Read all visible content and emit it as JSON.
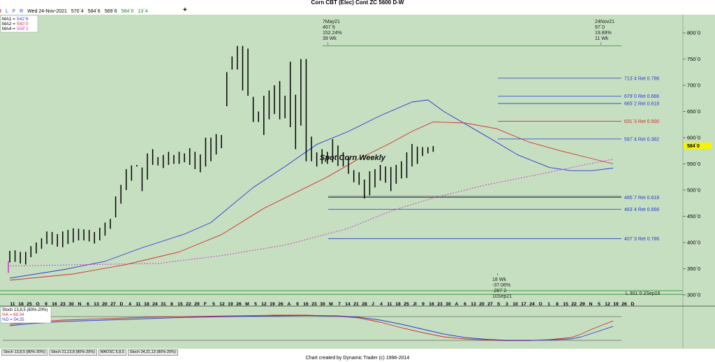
{
  "title": "Corn CBT (Elec) Cont ZC 5600 D-W",
  "toolbar": {
    "letters": [
      "I",
      "L",
      "F",
      "R"
    ],
    "date": "Wed 24-Nov-2021",
    "open": "570`4",
    "high": "584`6",
    "low": "569`6",
    "close": "584`0",
    "change": "13`4",
    "plus": "+"
  },
  "legend": [
    {
      "label": "MA1 =",
      "value": "542`6",
      "color": "#2b3bd6"
    },
    {
      "label": "MA2 =",
      "value": "550`0",
      "color": "#d32f2f"
    },
    {
      "label": "MA4 =",
      "value": "559`2",
      "color": "#cc33cc"
    }
  ],
  "annotations": {
    "chart_label": "Spot Corn Weekly",
    "high_lines": [
      "7May21",
      "467`6",
      "152.24%",
      "39 Wk"
    ],
    "recent_lines": [
      "24Nov21",
      "97`0",
      "19.89%",
      "11 Wk"
    ],
    "low_lines": [
      "18 Wk",
      "-37.06%",
      "-287`2",
      "10Sep21"
    ],
    "low_line_label": "L 301`0 2Sep16",
    "price_badge": "584`0"
  },
  "stoch_legend": {
    "title": "Stoch 13,8,5 (80%-20%)",
    "k": "%K = 69.34",
    "d": "%D = 54.25"
  },
  "tabs": [
    "Stoch 13,8,5 (80%-20%)",
    "Stoch 21,13,8 (80%-20%)",
    "MAOSC 5,8,5",
    "Stoch 34,21,13 (80%-20%)"
  ],
  "footer": "Chart created by Dynamic Trader  (c)  1996-2014",
  "colors": {
    "background": "#c6dfc1",
    "blue": "#2b3bd6",
    "red": "#d32f2f",
    "magenta": "#cc33cc",
    "green_line": "#2f8f2f",
    "badge": "#f5f500"
  },
  "chart_data": {
    "type": "bar",
    "title": "Corn CBT (Elec) Cont ZC 5600 D-W",
    "ylim": [
      290,
      840
    ],
    "y_ticks": [
      {
        "value": 800,
        "label": "800`0"
      },
      {
        "value": 750,
        "label": "750`0"
      },
      {
        "value": 700,
        "label": "700`0"
      },
      {
        "value": 650,
        "label": "650`0"
      },
      {
        "value": 600,
        "label": "600`0"
      },
      {
        "value": 550,
        "label": "550`0"
      },
      {
        "value": 500,
        "label": "500`0"
      },
      {
        "value": 450,
        "label": "450`0"
      },
      {
        "value": 400,
        "label": "400`0"
      },
      {
        "value": 350,
        "label": "350`0"
      },
      {
        "value": 300,
        "label": "300`0"
      }
    ],
    "x_labels": [
      "11",
      "18",
      "25",
      "O",
      "9",
      "16",
      "23",
      "30",
      "N",
      "6",
      "13",
      "20",
      "27",
      "D",
      "4",
      "11",
      "18",
      "24",
      "31",
      "8",
      "15",
      "22",
      "29",
      "F",
      "5",
      "12",
      "19",
      "26",
      "M",
      "5",
      "12",
      "19",
      "26",
      "A",
      "9",
      "16",
      "23",
      "30",
      "M",
      "7",
      "14",
      "21",
      "28",
      "J",
      "4",
      "11",
      "18",
      "25",
      "Jl",
      "9",
      "16",
      "23",
      "30",
      "A",
      "6",
      "13",
      "20",
      "27",
      "S",
      "3",
      "10",
      "17",
      "24",
      "O",
      "1",
      "8",
      "15",
      "22",
      "29",
      "N",
      "5",
      "12",
      "19",
      "26",
      "D"
    ],
    "ohlc": [
      [
        362,
        384
      ],
      [
        363,
        385
      ],
      [
        360,
        382
      ],
      [
        358,
        382
      ],
      [
        372,
        393
      ],
      [
        379,
        400
      ],
      [
        388,
        408
      ],
      [
        397,
        421
      ],
      [
        396,
        420
      ],
      [
        392,
        416
      ],
      [
        391,
        421
      ],
      [
        397,
        424
      ],
      [
        400,
        427
      ],
      [
        404,
        426
      ],
      [
        404,
        425
      ],
      [
        402,
        424
      ],
      [
        398,
        420
      ],
      [
        404,
        428
      ],
      [
        413,
        438
      ],
      [
        426,
        445
      ],
      [
        448,
        488
      ],
      [
        474,
        510
      ],
      [
        500,
        540
      ],
      [
        518,
        547
      ],
      [
        545,
        548
      ],
      [
        498,
        543
      ],
      [
        520,
        570
      ],
      [
        548,
        578
      ],
      [
        547,
        563
      ],
      [
        542,
        567
      ],
      [
        548,
        573
      ],
      [
        550,
        567
      ],
      [
        550,
        573
      ],
      [
        553,
        570
      ],
      [
        548,
        580
      ],
      [
        540,
        573
      ],
      [
        534,
        568
      ],
      [
        545,
        600
      ],
      [
        555,
        600
      ],
      [
        568,
        607
      ],
      [
        580,
        605
      ],
      [
        660,
        725
      ],
      [
        730,
        755
      ],
      [
        730,
        775
      ],
      [
        690,
        775
      ],
      [
        680,
        770
      ],
      [
        630,
        678
      ],
      [
        630,
        650
      ],
      [
        605,
        680
      ],
      [
        635,
        690
      ],
      [
        645,
        700
      ],
      [
        635,
        708
      ],
      [
        637,
        680
      ],
      [
        620,
        745
      ],
      [
        578,
        682
      ],
      [
        623,
        750
      ],
      [
        555,
        750
      ],
      [
        555,
        602
      ],
      [
        545,
        572
      ],
      [
        550,
        578
      ],
      [
        550,
        573
      ],
      [
        553,
        597
      ],
      [
        546,
        585
      ],
      [
        545,
        572
      ],
      [
        531,
        564
      ],
      [
        515,
        538
      ],
      [
        510,
        534
      ],
      [
        484,
        520
      ],
      [
        490,
        536
      ],
      [
        505,
        540
      ],
      [
        518,
        548
      ],
      [
        514,
        545
      ],
      [
        498,
        544
      ],
      [
        512,
        548
      ],
      [
        522,
        555
      ],
      [
        523,
        572
      ],
      [
        545,
        588
      ],
      [
        550,
        583
      ],
      [
        565,
        582
      ],
      [
        570,
        582
      ],
      [
        573,
        584
      ]
    ],
    "series": [
      {
        "name": "MA1",
        "values": [
          [
            0,
            332
          ],
          [
            10,
            348
          ],
          [
            18,
            364
          ],
          [
            25,
            390
          ],
          [
            33,
            416
          ],
          [
            38,
            438
          ],
          [
            46,
            505
          ],
          [
            52,
            545
          ],
          [
            58,
            587
          ],
          [
            64,
            612
          ],
          [
            70,
            642
          ],
          [
            76,
            668
          ],
          [
            79,
            672
          ],
          [
            82,
            650
          ],
          [
            90,
            603
          ],
          [
            96,
            567
          ],
          [
            102,
            543
          ],
          [
            106,
            537
          ],
          [
            110,
            537
          ],
          [
            114,
            542
          ]
        ]
      },
      {
        "name": "MA2",
        "values": [
          [
            0,
            328
          ],
          [
            12,
            340
          ],
          [
            22,
            358
          ],
          [
            32,
            382
          ],
          [
            40,
            415
          ],
          [
            48,
            465
          ],
          [
            54,
            495
          ],
          [
            60,
            525
          ],
          [
            66,
            560
          ],
          [
            72,
            590
          ],
          [
            76,
            612
          ],
          [
            80,
            630
          ],
          [
            86,
            628
          ],
          [
            92,
            617
          ],
          [
            98,
            592
          ],
          [
            104,
            575
          ],
          [
            110,
            560
          ],
          [
            114,
            550
          ]
        ]
      },
      {
        "name": "MA4",
        "values": [
          [
            0,
            355
          ],
          [
            15,
            358
          ],
          [
            28,
            360
          ],
          [
            40,
            375
          ],
          [
            52,
            395
          ],
          [
            64,
            427
          ],
          [
            72,
            460
          ],
          [
            80,
            485
          ],
          [
            90,
            510
          ],
          [
            100,
            530
          ],
          [
            108,
            547
          ],
          [
            114,
            559
          ]
        ]
      }
    ],
    "retracement_lines": [
      {
        "value": 713.5,
        "label": "713`4 Ret 0.786",
        "color": "#2b3bd6"
      },
      {
        "value": 679,
        "label": "679`0 Ret 0.666",
        "color": "#2b3bd6"
      },
      {
        "value": 665.25,
        "label": "665`2 Ret 0.618",
        "color": "#2b3bd6"
      },
      {
        "value": 631.375,
        "label": "631`3 Ret 0.500",
        "color": "#d32f2f"
      },
      {
        "value": 597.5,
        "label": "597`4 Ret 0.382",
        "color": "#2b3bd6"
      },
      {
        "value": 485.875,
        "label": "485`7 Ret 0.618",
        "color": "#2b3bd6"
      },
      {
        "value": 463.5,
        "label": "463`4 Ret 0.666",
        "color": "#2b3bd6"
      },
      {
        "value": 407.375,
        "label": "407`3 Ret 0.786",
        "color": "#2b3bd6"
      }
    ],
    "levels": [
      {
        "value": 775,
        "name": "high",
        "color": "#2f8f2f"
      },
      {
        "value": 488,
        "name": "swing-low",
        "color": "#333333"
      },
      {
        "value": 308,
        "name": "low-1",
        "color": "#2f8f2f"
      },
      {
        "value": 301,
        "name": "low-2",
        "color": "#2f8f2f"
      }
    ],
    "stochastic": {
      "ylim": [
        0,
        100
      ],
      "bands": [
        80,
        20
      ],
      "k": [
        [
          0,
          60
        ],
        [
          4,
          66
        ],
        [
          10,
          72
        ],
        [
          18,
          76
        ],
        [
          26,
          80
        ],
        [
          34,
          82
        ],
        [
          42,
          84
        ],
        [
          50,
          86
        ],
        [
          56,
          86
        ],
        [
          62,
          83
        ],
        [
          66,
          78
        ],
        [
          70,
          66
        ],
        [
          74,
          50
        ],
        [
          78,
          36
        ],
        [
          82,
          24
        ],
        [
          86,
          18
        ],
        [
          90,
          15
        ],
        [
          94,
          13
        ],
        [
          98,
          13
        ],
        [
          102,
          16
        ],
        [
          106,
          22
        ],
        [
          108,
          32
        ],
        [
          110,
          46
        ],
        [
          112,
          58
        ],
        [
          114,
          69.34
        ]
      ],
      "d": [
        [
          0,
          56
        ],
        [
          4,
          62
        ],
        [
          10,
          68
        ],
        [
          18,
          72
        ],
        [
          26,
          76
        ],
        [
          34,
          80
        ],
        [
          42,
          82
        ],
        [
          50,
          84
        ],
        [
          56,
          85
        ],
        [
          62,
          84
        ],
        [
          66,
          80
        ],
        [
          70,
          72
        ],
        [
          74,
          60
        ],
        [
          78,
          46
        ],
        [
          82,
          32
        ],
        [
          86,
          22
        ],
        [
          90,
          17
        ],
        [
          94,
          14
        ],
        [
          98,
          14
        ],
        [
          102,
          15
        ],
        [
          106,
          18
        ],
        [
          108,
          24
        ],
        [
          110,
          34
        ],
        [
          112,
          44
        ],
        [
          114,
          54.25
        ]
      ]
    }
  }
}
